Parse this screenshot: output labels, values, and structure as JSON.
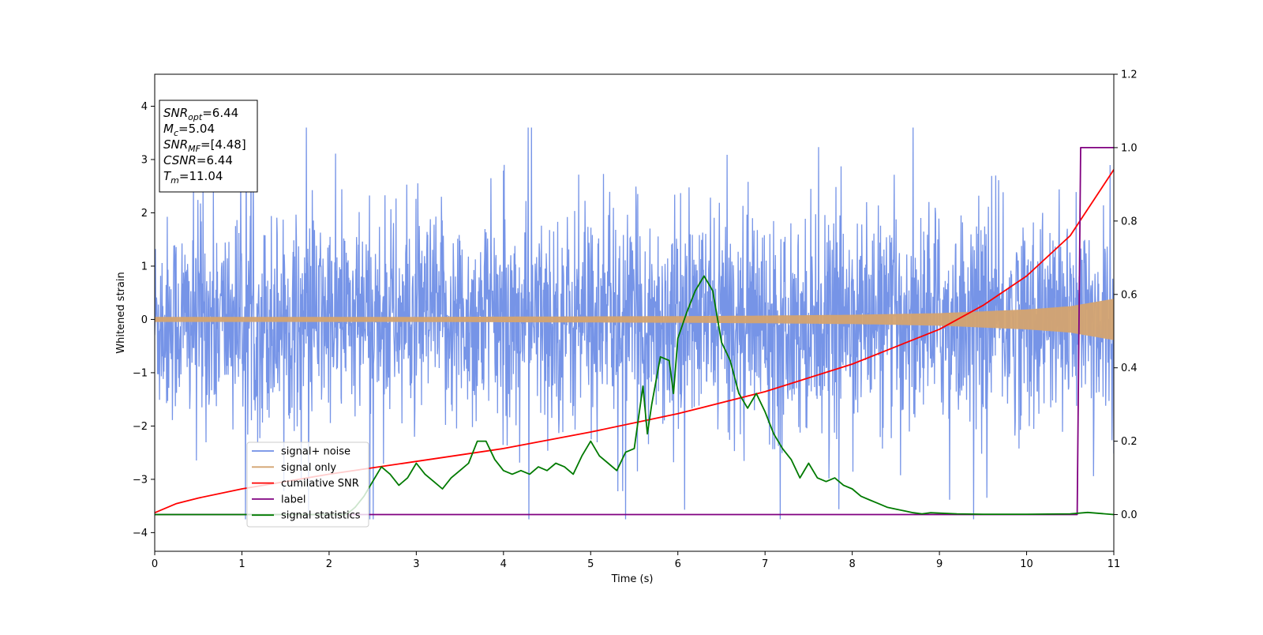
{
  "chart_data": {
    "type": "line",
    "title": "",
    "xlabel": "Time (s)",
    "ylabel": "Whitened strain",
    "xlim": [
      0,
      11
    ],
    "ylim": [
      -4.35,
      4.6
    ],
    "y2lim": [
      -0.1,
      1.2
    ],
    "xticks": [
      "0",
      "1",
      "2",
      "3",
      "4",
      "5",
      "6",
      "7",
      "8",
      "9",
      "10",
      "11"
    ],
    "yticks": [
      "−4",
      "−3",
      "−2",
      "−1",
      "0",
      "1",
      "2",
      "3",
      "4"
    ],
    "y2ticks": [
      "0.0",
      "0.2",
      "0.4",
      "0.6",
      "0.8",
      "1.0",
      "1.2"
    ],
    "grid": false,
    "legend_position": "lower-left",
    "colors": {
      "signal_noise": "#6f8ee6",
      "signal_only": "#d4a470",
      "cumulative_snr": "#ff0000",
      "label": "#800080",
      "signal_statistics": "#007a00"
    },
    "annotation": {
      "lines": [
        {
          "main": "SNR",
          "sub": "opt",
          "rest": "=6.44"
        },
        {
          "main": "M",
          "sub": "c",
          "rest": "=5.04"
        },
        {
          "main": "SNR",
          "sub": "MF",
          "rest": "=[4.48]"
        },
        {
          "main": "CSNR",
          "sub": "",
          "rest": "=6.44"
        },
        {
          "main": "T",
          "sub": "m",
          "rest": "=11.04"
        }
      ]
    },
    "series": [
      {
        "name": "signal+ noise",
        "axis": "left",
        "kind": "noise_band",
        "typical_range": [
          -2.2,
          2.2
        ],
        "extreme_range": [
          -3.75,
          3.6
        ]
      },
      {
        "name": "signal only",
        "axis": "left",
        "kind": "chirp_envelope",
        "x": [
          0,
          1,
          2,
          3,
          4,
          5,
          6,
          7,
          8,
          9,
          10,
          10.5,
          11
        ],
        "amplitude": [
          0.04,
          0.04,
          0.04,
          0.04,
          0.045,
          0.05,
          0.055,
          0.065,
          0.08,
          0.11,
          0.18,
          0.24,
          0.38
        ]
      },
      {
        "name": "cumilative SNR",
        "axis": "right",
        "x": [
          0,
          0.25,
          0.5,
          1,
          1.5,
          2,
          3,
          4,
          5,
          6,
          7,
          8,
          9,
          9.5,
          10,
          10.5,
          11
        ],
        "y": [
          0.005,
          0.03,
          0.045,
          0.07,
          0.09,
          0.11,
          0.145,
          0.18,
          0.225,
          0.275,
          0.335,
          0.41,
          0.505,
          0.57,
          0.65,
          0.76,
          0.94
        ]
      },
      {
        "name": "label",
        "axis": "right",
        "x": [
          0,
          10.58,
          10.62,
          11
        ],
        "y": [
          0,
          0,
          1,
          1
        ]
      },
      {
        "name": "signal statistics",
        "axis": "right",
        "x": [
          0,
          2.2,
          2.3,
          2.4,
          2.5,
          2.6,
          2.7,
          2.8,
          2.9,
          3.0,
          3.1,
          3.2,
          3.3,
          3.4,
          3.5,
          3.6,
          3.7,
          3.8,
          3.9,
          4.0,
          4.1,
          4.2,
          4.3,
          4.4,
          4.5,
          4.6,
          4.7,
          4.8,
          4.9,
          5.0,
          5.1,
          5.2,
          5.3,
          5.4,
          5.5,
          5.6,
          5.65,
          5.7,
          5.8,
          5.9,
          5.95,
          6.0,
          6.1,
          6.2,
          6.3,
          6.4,
          6.5,
          6.6,
          6.7,
          6.8,
          6.9,
          7.0,
          7.1,
          7.2,
          7.3,
          7.4,
          7.5,
          7.6,
          7.7,
          7.8,
          7.9,
          8.0,
          8.1,
          8.2,
          8.3,
          8.4,
          8.5,
          8.6,
          8.7,
          8.8,
          8.9,
          9.0,
          9.2,
          9.5,
          10.0,
          10.5,
          10.7,
          11.0
        ],
        "y": [
          0,
          0,
          0.02,
          0.05,
          0.09,
          0.13,
          0.11,
          0.08,
          0.1,
          0.14,
          0.11,
          0.09,
          0.07,
          0.1,
          0.12,
          0.14,
          0.2,
          0.2,
          0.15,
          0.12,
          0.11,
          0.12,
          0.11,
          0.13,
          0.12,
          0.14,
          0.13,
          0.11,
          0.16,
          0.2,
          0.16,
          0.14,
          0.12,
          0.17,
          0.18,
          0.35,
          0.22,
          0.3,
          0.43,
          0.42,
          0.33,
          0.48,
          0.55,
          0.61,
          0.65,
          0.61,
          0.47,
          0.42,
          0.33,
          0.29,
          0.33,
          0.28,
          0.22,
          0.18,
          0.15,
          0.1,
          0.14,
          0.1,
          0.09,
          0.1,
          0.08,
          0.07,
          0.05,
          0.04,
          0.03,
          0.02,
          0.015,
          0.01,
          0.005,
          0.002,
          0.005,
          0.004,
          0.002,
          0.001,
          0.001,
          0.002,
          0.006,
          0.0
        ]
      }
    ]
  }
}
